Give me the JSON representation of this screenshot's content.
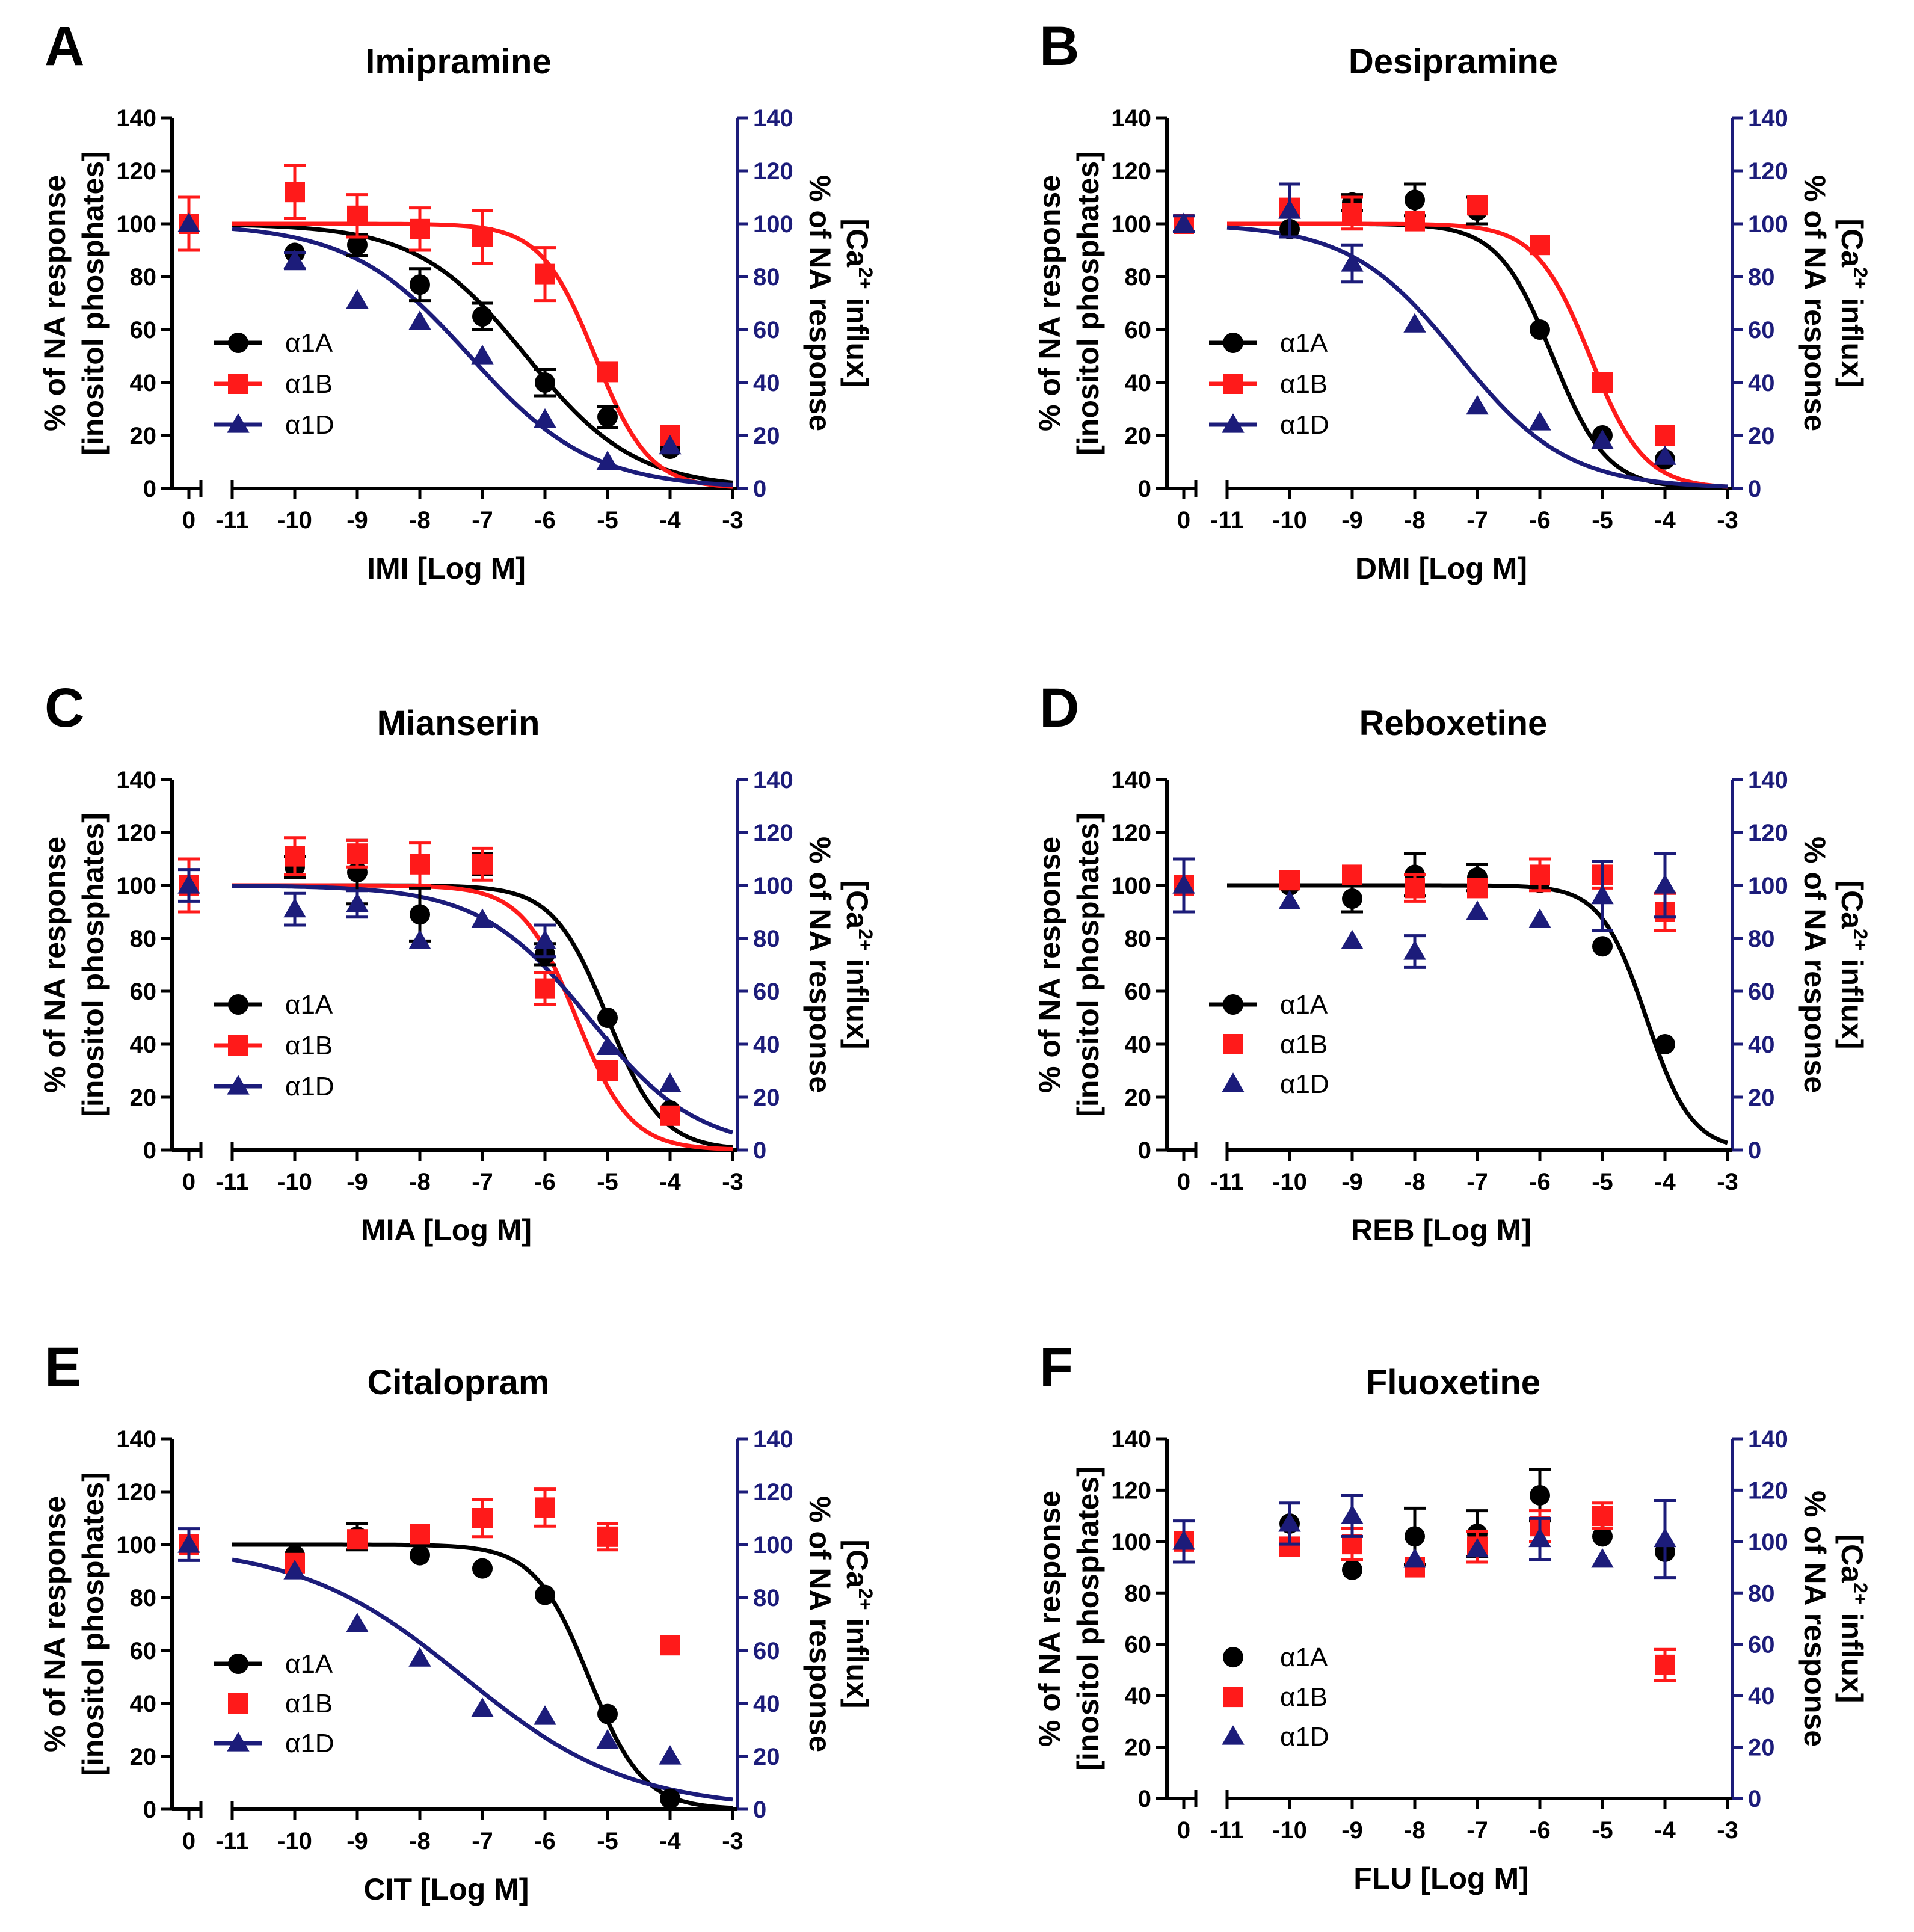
{
  "figure": {
    "colors": {
      "a1A": "#000000",
      "a1B": "#ff1a1a",
      "a1D": "#1c1c7a",
      "right_axis": "#1c1c7a"
    },
    "left_axis_label": [
      "% of NA response",
      "[inositol phosphates]"
    ],
    "right_axis_label": [
      "% of NA response",
      "[Ca",
      "2+",
      " influx]"
    ],
    "legend_labels": [
      "α1A",
      "α1B",
      "α1D"
    ]
  },
  "chart_data": [
    {
      "panel": "A",
      "title": "Imipramine",
      "type": "scatter",
      "xlabel": "IMI [Log M]",
      "xticks": [
        "0",
        "-11",
        "-10",
        "-9",
        "-8",
        "-7",
        "-6",
        "-5",
        "-4",
        "-3"
      ],
      "xlim": [
        -11,
        -3
      ],
      "ylim": [
        0,
        140
      ],
      "yticks": [
        0,
        20,
        40,
        60,
        80,
        100,
        120,
        140
      ],
      "series": [
        {
          "name": "α1A",
          "control": 100,
          "x": [
            -10,
            -9,
            -8,
            -7,
            -6,
            -5,
            -4
          ],
          "y": [
            89,
            92,
            77,
            65,
            40,
            27,
            15
          ],
          "err": [
            0,
            4,
            6,
            5,
            5,
            4,
            0
          ],
          "fit": {
            "ic50": -6.3,
            "hill": 0.5,
            "top": 100,
            "bottom": 0
          }
        },
        {
          "name": "α1B",
          "control": 100,
          "control_err": 10,
          "x": [
            -10,
            -9,
            -8,
            -7,
            -6,
            -5,
            -4
          ],
          "y": [
            112,
            103,
            98,
            95,
            81,
            44,
            20
          ],
          "err": [
            10,
            8,
            8,
            10,
            10,
            0,
            0
          ],
          "fit": {
            "ic50": -5.2,
            "hill": 1.0,
            "top": 100,
            "bottom": 0
          }
        },
        {
          "name": "α1D",
          "control": 100,
          "x": [
            -10,
            -9,
            -8,
            -7,
            -6,
            -5,
            -4
          ],
          "y": [
            86,
            71,
            63,
            50,
            26,
            10,
            16
          ],
          "err": [
            3,
            0,
            0,
            0,
            0,
            0,
            0
          ],
          "fit": {
            "ic50": -7.2,
            "hill": 0.45,
            "top": 100,
            "bottom": 0
          }
        }
      ]
    },
    {
      "panel": "B",
      "title": "Desipramine",
      "type": "scatter",
      "xlabel": "DMI [Log M]",
      "xticks": [
        "0",
        "-11",
        "-10",
        "-9",
        "-8",
        "-7",
        "-6",
        "-5",
        "-4",
        "-3"
      ],
      "xlim": [
        -11,
        -3
      ],
      "ylim": [
        0,
        140
      ],
      "yticks": [
        0,
        20,
        40,
        60,
        80,
        100,
        120,
        140
      ],
      "series": [
        {
          "name": "α1A",
          "control": 100,
          "x": [
            -10,
            -9,
            -8,
            -7,
            -6,
            -5,
            -4
          ],
          "y": [
            98,
            108,
            109,
            105,
            60,
            20,
            11
          ],
          "err": [
            0,
            3,
            6,
            5,
            0,
            0,
            0
          ],
          "fit": {
            "ic50": -5.8,
            "hill": 1.0,
            "top": 100,
            "bottom": 0
          }
        },
        {
          "name": "α1B",
          "control": 100,
          "x": [
            -10,
            -9,
            -8,
            -7,
            -6,
            -5,
            -4
          ],
          "y": [
            106,
            104,
            101,
            107,
            92,
            40,
            20
          ],
          "err": [
            0,
            6,
            0,
            0,
            0,
            0,
            0
          ],
          "fit": {
            "ic50": -5.2,
            "hill": 1.0,
            "top": 100,
            "bottom": 0
          }
        },
        {
          "name": "α1D",
          "control": 100,
          "control_err": 3,
          "x": [
            -10,
            -9,
            -8,
            -7,
            -6,
            -5,
            -4
          ],
          "y": [
            105,
            85,
            62,
            31,
            25,
            18,
            12
          ],
          "err": [
            10,
            7,
            0,
            0,
            0,
            0,
            0
          ],
          "fit": {
            "ic50": -7.3,
            "hill": 0.5,
            "top": 100,
            "bottom": 0
          }
        }
      ]
    },
    {
      "panel": "C",
      "title": "Mianserin",
      "type": "scatter",
      "xlabel": "MIA [Log M]",
      "xticks": [
        "0",
        "-11",
        "-10",
        "-9",
        "-8",
        "-7",
        "-6",
        "-5",
        "-4",
        "-3"
      ],
      "xlim": [
        -11,
        -3
      ],
      "ylim": [
        0,
        140
      ],
      "yticks": [
        0,
        20,
        40,
        60,
        80,
        100,
        120,
        140
      ],
      "series": [
        {
          "name": "α1A",
          "control": 100,
          "x": [
            -10,
            -9,
            -8,
            -7,
            -6,
            -5,
            -4
          ],
          "y": [
            107,
            105,
            89,
            108,
            74,
            50,
            15
          ],
          "err": [
            4,
            12,
            10,
            4,
            4,
            0,
            0
          ],
          "fit": {
            "ic50": -5.0,
            "hill": 1.0,
            "top": 100,
            "bottom": 0
          }
        },
        {
          "name": "α1B",
          "control": 100,
          "control_err": 10,
          "x": [
            -10,
            -9,
            -8,
            -7,
            -6,
            -5,
            -4
          ],
          "y": [
            111,
            112,
            108,
            108,
            61,
            30,
            13
          ],
          "err": [
            7,
            5,
            8,
            6,
            6,
            0,
            0
          ],
          "fit": {
            "ic50": -5.5,
            "hill": 1.0,
            "top": 100,
            "bottom": 0
          }
        },
        {
          "name": "α1D",
          "control": 100,
          "control_err": 6,
          "x": [
            -10,
            -9,
            -8,
            -7,
            -6,
            -5,
            -4
          ],
          "y": [
            91,
            93,
            79,
            87,
            79,
            39,
            25
          ],
          "err": [
            6,
            5,
            0,
            0,
            6,
            0,
            0
          ],
          "fit": {
            "ic50": -5.3,
            "hill": 0.5,
            "top": 100,
            "bottom": 0
          }
        }
      ]
    },
    {
      "panel": "D",
      "title": "Reboxetine",
      "type": "scatter",
      "xlabel": "REB [Log M]",
      "xticks": [
        "0",
        "-11",
        "-10",
        "-9",
        "-8",
        "-7",
        "-6",
        "-5",
        "-4",
        "-3"
      ],
      "xlim": [
        -11,
        -3
      ],
      "ylim": [
        0,
        140
      ],
      "yticks": [
        0,
        20,
        40,
        60,
        80,
        100,
        120,
        140
      ],
      "series": [
        {
          "name": "α1A",
          "control": 100,
          "x": [
            -10,
            -9,
            -8,
            -7,
            -6,
            -5,
            -4
          ],
          "y": [
            100,
            95,
            104,
            103,
            101,
            77,
            40
          ],
          "err": [
            0,
            5,
            8,
            5,
            0,
            0,
            0
          ],
          "fit": {
            "ic50": -4.3,
            "hill": 1.2,
            "top": 100,
            "bottom": 0
          }
        },
        {
          "name": "α1B",
          "control": 100,
          "x": [
            -10,
            -9,
            -8,
            -7,
            -6,
            -5,
            -4
          ],
          "y": [
            102,
            104,
            99,
            99,
            104,
            104,
            90
          ],
          "err": [
            0,
            0,
            5,
            0,
            6,
            5,
            7
          ],
          "fit": null
        },
        {
          "name": "α1D",
          "control": 100,
          "control_err": 10,
          "x": [
            -10,
            -9,
            -8,
            -7,
            -6,
            -5,
            -4
          ],
          "y": [
            94,
            79,
            75,
            90,
            87,
            96,
            100
          ],
          "err": [
            0,
            0,
            6,
            0,
            0,
            13,
            12
          ],
          "fit": null
        }
      ]
    },
    {
      "panel": "E",
      "title": "Citalopram",
      "type": "scatter",
      "xlabel": "CIT [Log M]",
      "xticks": [
        "0",
        "-11",
        "-10",
        "-9",
        "-8",
        "-7",
        "-6",
        "-5",
        "-4",
        "-3"
      ],
      "xlim": [
        -11,
        -3
      ],
      "ylim": [
        0,
        140
      ],
      "yticks": [
        0,
        20,
        40,
        60,
        80,
        100,
        120,
        140
      ],
      "series": [
        {
          "name": "α1A",
          "control": 100,
          "x": [
            -10,
            -9,
            -8,
            -7,
            -6,
            -5,
            -4
          ],
          "y": [
            96,
            103,
            96,
            91,
            81,
            36,
            4
          ],
          "err": [
            0,
            5,
            0,
            0,
            0,
            0,
            0
          ],
          "fit": {
            "ic50": -5.3,
            "hill": 1.0,
            "top": 100,
            "bottom": 0
          }
        },
        {
          "name": "α1B",
          "control": 100,
          "x": [
            -10,
            -9,
            -8,
            -7,
            -6,
            -5,
            -4
          ],
          "y": [
            93,
            102,
            104,
            110,
            114,
            103,
            62
          ],
          "err": [
            0,
            0,
            0,
            7,
            7,
            5,
            0
          ],
          "fit": null
        },
        {
          "name": "α1D",
          "control": 100,
          "control_err": 6,
          "x": [
            -10,
            -9,
            -8,
            -7,
            -6,
            -5,
            -4
          ],
          "y": [
            90,
            70,
            57,
            38,
            35,
            26,
            20
          ],
          "err": [
            0,
            0,
            0,
            0,
            0,
            0,
            0
          ],
          "fit": {
            "ic50": -7.3,
            "hill": 0.33,
            "top": 100,
            "bottom": 0
          }
        }
      ]
    },
    {
      "panel": "F",
      "title": "Fluoxetine",
      "type": "scatter",
      "xlabel": "FLU [Log M]",
      "xticks": [
        "0",
        "-11",
        "-10",
        "-9",
        "-8",
        "-7",
        "-6",
        "-5",
        "-4",
        "-3"
      ],
      "xlim": [
        -11,
        -3
      ],
      "ylim": [
        0,
        140
      ],
      "yticks": [
        0,
        20,
        40,
        60,
        80,
        100,
        120,
        140
      ],
      "series": [
        {
          "name": "α1A",
          "control": 100,
          "x": [
            -10,
            -9,
            -8,
            -7,
            -6,
            -5,
            -4
          ],
          "y": [
            107,
            89,
            102,
            103,
            118,
            102,
            96
          ],
          "err": [
            0,
            0,
            11,
            9,
            10,
            0,
            0
          ],
          "fit": null
        },
        {
          "name": "α1B",
          "control": 100,
          "x": [
            -10,
            -9,
            -8,
            -7,
            -6,
            -5,
            -4
          ],
          "y": [
            98,
            99,
            90,
            98,
            106,
            110,
            52
          ],
          "err": [
            0,
            6,
            0,
            6,
            6,
            5,
            6
          ],
          "fit": null
        },
        {
          "name": "α1D",
          "control": 100,
          "control_err": 8,
          "x": [
            -10,
            -9,
            -8,
            -7,
            -6,
            -5,
            -4
          ],
          "y": [
            107,
            110,
            93,
            97,
            101,
            93,
            101
          ],
          "err": [
            8,
            8,
            0,
            0,
            8,
            0,
            15
          ],
          "fit": null
        }
      ]
    }
  ]
}
